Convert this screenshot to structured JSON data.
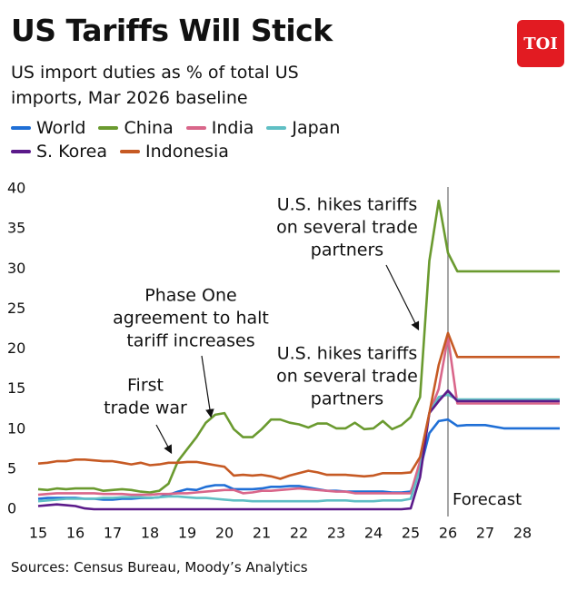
{
  "chart_data": {
    "type": "line",
    "title": "US Tariffs Will Stick",
    "subtitle": "US import duties as % of total US imports, Mar 2026 baseline",
    "logo": "TOI",
    "source": "Sources: Census Bureau, Moody’s Analytics",
    "x": [
      15,
      15.25,
      15.5,
      15.75,
      16,
      16.25,
      16.5,
      16.75,
      17,
      17.25,
      17.5,
      17.75,
      18,
      18.25,
      18.5,
      18.75,
      19,
      19.25,
      19.5,
      19.75,
      20,
      20.25,
      20.5,
      20.75,
      21,
      21.25,
      21.5,
      21.75,
      22,
      22.25,
      22.5,
      22.75,
      23,
      23.25,
      23.5,
      23.75,
      24,
      24.25,
      24.5,
      24.75,
      25,
      25.25,
      25.5,
      25.75,
      26,
      26.25,
      26.5,
      27,
      27.5,
      28,
      28.5,
      29
    ],
    "series": [
      {
        "name": "World",
        "color": "#1f6fd6",
        "values": [
          1.3,
          1.4,
          1.4,
          1.4,
          1.4,
          1.3,
          1.3,
          1.2,
          1.2,
          1.3,
          1.3,
          1.4,
          1.4,
          1.5,
          1.8,
          2.2,
          2.5,
          2.4,
          2.8,
          3.0,
          3.0,
          2.5,
          2.5,
          2.5,
          2.6,
          2.8,
          2.8,
          2.9,
          2.9,
          2.7,
          2.5,
          2.3,
          2.3,
          2.2,
          2.2,
          2.2,
          2.2,
          2.2,
          2.1,
          2.1,
          2.2,
          5,
          9.5,
          11,
          11.2,
          10.4,
          10.5,
          10.5,
          10.1,
          10.1,
          10.1,
          10.1
        ]
      },
      {
        "name": "China",
        "color": "#6a9a2f",
        "values": [
          2.5,
          2.4,
          2.6,
          2.5,
          2.6,
          2.6,
          2.6,
          2.3,
          2.4,
          2.5,
          2.4,
          2.2,
          2.1,
          2.3,
          3.2,
          6,
          7.5,
          9,
          10.8,
          11.8,
          12,
          10,
          9,
          9,
          10,
          11.2,
          11.2,
          10.8,
          10.6,
          10.2,
          10.7,
          10.7,
          10.1,
          10.1,
          10.8,
          10,
          10.1,
          11,
          10,
          10.5,
          11.5,
          14,
          31,
          38.5,
          32,
          29.7,
          29.7,
          29.7,
          29.7,
          29.7,
          29.7,
          29.7
        ]
      },
      {
        "name": "India",
        "color": "#d9668a",
        "values": [
          1.8,
          1.9,
          2.0,
          2.0,
          2.0,
          2.0,
          2.0,
          1.9,
          1.9,
          1.9,
          1.8,
          1.8,
          1.8,
          1.9,
          1.9,
          2.0,
          2.0,
          2.1,
          2.2,
          2.3,
          2.4,
          2.4,
          2.0,
          2.1,
          2.3,
          2.3,
          2.4,
          2.5,
          2.6,
          2.5,
          2.4,
          2.3,
          2.2,
          2.2,
          2.0,
          2.0,
          2.0,
          2.0,
          2.0,
          2.0,
          2.0,
          6,
          12,
          15,
          21.5,
          13.2,
          13.2,
          13.2,
          13.2,
          13.2,
          13.2,
          13.2
        ]
      },
      {
        "name": "Japan",
        "color": "#5fbfc4",
        "values": [
          1.0,
          1.1,
          1.2,
          1.3,
          1.3,
          1.3,
          1.3,
          1.4,
          1.4,
          1.5,
          1.5,
          1.5,
          1.4,
          1.5,
          1.6,
          1.6,
          1.5,
          1.4,
          1.4,
          1.3,
          1.2,
          1.1,
          1.1,
          1.0,
          1.0,
          1.0,
          1.0,
          1.0,
          1.0,
          1.0,
          1.0,
          1.1,
          1.1,
          1.1,
          1.0,
          1.0,
          1.0,
          1.1,
          1.1,
          1.1,
          1.3,
          5,
          12,
          14,
          14.3,
          13.7,
          13.7,
          13.7,
          13.7,
          13.7,
          13.7,
          13.7
        ]
      },
      {
        "name": "S. Korea",
        "color": "#5b1a8a",
        "values": [
          0.4,
          0.5,
          0.6,
          0.5,
          0.4,
          0.1,
          0,
          0,
          0,
          0,
          0,
          0,
          0,
          0,
          0,
          0,
          0,
          0,
          0,
          0,
          0,
          0,
          0,
          0,
          0,
          0,
          0,
          0,
          0,
          0,
          0,
          0,
          0,
          0,
          0,
          0,
          0,
          0,
          0,
          0,
          0.1,
          4,
          12,
          13.5,
          14.8,
          13.5,
          13.5,
          13.5,
          13.5,
          13.5,
          13.5,
          13.5
        ]
      },
      {
        "name": "Indonesia",
        "color": "#c65a24",
        "values": [
          5.7,
          5.8,
          6.0,
          6.0,
          6.2,
          6.2,
          6.1,
          6.0,
          6.0,
          5.8,
          5.6,
          5.8,
          5.5,
          5.6,
          5.8,
          5.8,
          5.9,
          5.9,
          5.7,
          5.5,
          5.3,
          4.2,
          4.3,
          4.2,
          4.3,
          4.1,
          3.8,
          4.2,
          4.5,
          4.8,
          4.6,
          4.3,
          4.3,
          4.3,
          4.2,
          4.1,
          4.2,
          4.5,
          4.5,
          4.5,
          4.6,
          6.5,
          12,
          18,
          22,
          19,
          19,
          19,
          19,
          19,
          19,
          19
        ]
      }
    ],
    "xlim": [
      14.9,
      29
    ],
    "xticks": [
      15,
      16,
      17,
      18,
      19,
      20,
      21,
      22,
      23,
      24,
      25,
      26,
      27,
      28
    ],
    "ylim": [
      0,
      40
    ],
    "yticks": [
      0,
      5,
      10,
      15,
      20,
      25,
      30,
      35,
      40
    ],
    "forecast": {
      "x": 26,
      "label": "Forecast"
    },
    "annotations": [
      {
        "lines": [
          "First",
          "trade war"
        ]
      },
      {
        "lines": [
          "Phase One",
          "agreement to halt",
          "tariff increases"
        ]
      },
      {
        "lines": [
          "U.S. hikes tariffs",
          "on several trade",
          "partners"
        ]
      },
      {
        "lines": [
          "U.S. hikes tariffs",
          "on several trade",
          "partners"
        ]
      }
    ]
  }
}
